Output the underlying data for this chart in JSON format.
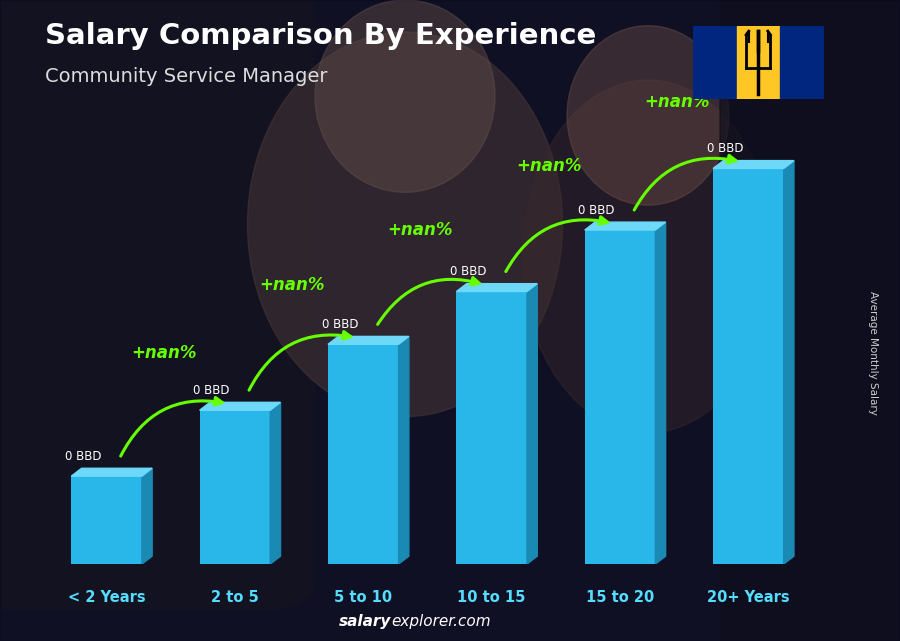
{
  "title_line1": "Salary Comparison By Experience",
  "title_line2": "Community Service Manager",
  "categories": [
    "< 2 Years",
    "2 to 5",
    "5 to 10",
    "10 to 15",
    "15 to 20",
    "20+ Years"
  ],
  "bar_label": "0 BBD",
  "pct_label": "+nan%",
  "bar_color_face": "#29b6e8",
  "bar_color_right": "#1a8ab5",
  "bar_color_top": "#6dd8f8",
  "arrow_color": "#66ff00",
  "zero_bbd_color": "#ffffff",
  "cat_label_color": "#55ddff",
  "footer_salary_color": "#ffffff",
  "footer_explorer_color": "#aaaaff",
  "side_label": "Average Monthly Salary",
  "side_label_color": "#cccccc",
  "bar_heights_norm": [
    0.2,
    0.35,
    0.5,
    0.62,
    0.76,
    0.9
  ],
  "ylim": [
    0,
    1.05
  ],
  "bg_color": "#2a2a35",
  "flag_blue": "#00267F",
  "flag_yellow": "#FFC726"
}
